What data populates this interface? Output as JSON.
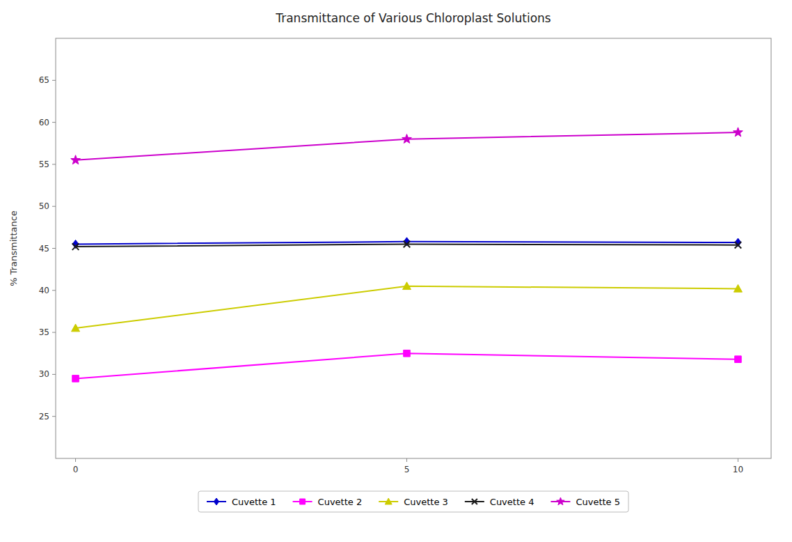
{
  "chart_data": {
    "type": "line",
    "title": "Transmittance of Various Chloroplast Solutions",
    "ylabel": "% Transmittance",
    "x": [
      0,
      5,
      10
    ],
    "series": [
      {
        "name": "Cuvette 1",
        "color": "#0000cc",
        "marker": "diamond",
        "values": [
          45.5,
          45.8,
          45.7
        ]
      },
      {
        "name": "Cuvette 2",
        "color": "#ff00ff",
        "marker": "square",
        "values": [
          29.5,
          32.5,
          31.8
        ]
      },
      {
        "name": "Cuvette 3",
        "color": "#cccc00",
        "marker": "triangle",
        "values": [
          35.5,
          40.5,
          40.2
        ]
      },
      {
        "name": "Cuvette 4",
        "color": "#1a1a1a",
        "marker": "x",
        "values": [
          45.2,
          45.5,
          45.4
        ]
      },
      {
        "name": "Cuvette 5",
        "color": "#cc00cc",
        "marker": "star",
        "values": [
          55.5,
          58.0,
          58.8
        ]
      }
    ],
    "xlim": [
      -0.3,
      10.5
    ],
    "ylim": [
      20,
      70
    ],
    "xticks": [
      0,
      5,
      10
    ],
    "yticks": [
      25,
      30,
      35,
      40,
      45,
      50,
      55,
      60,
      65
    ],
    "grid": false,
    "legend": "bottom"
  }
}
